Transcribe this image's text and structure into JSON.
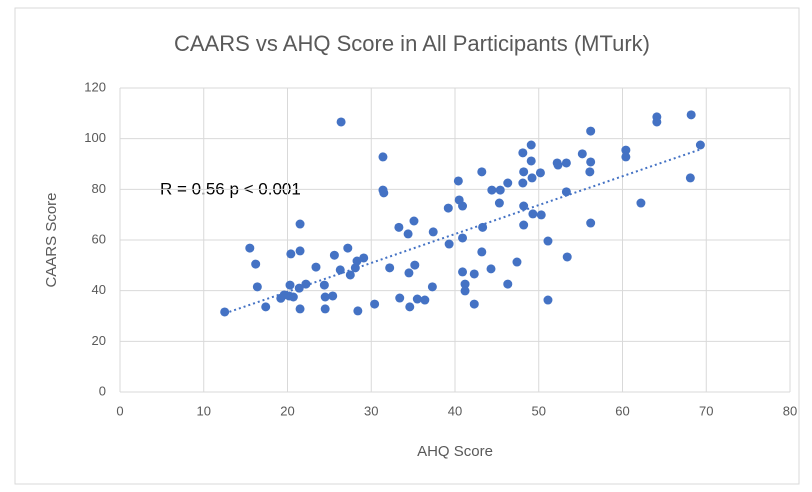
{
  "chart_data": {
    "type": "scatter",
    "title": "CAARS vs AHQ Score in All Participants (MTurk)",
    "x_label": "AHQ Score",
    "y_label": "CAARS Score",
    "annotation": "R = 0.56 p < 0.001",
    "color": "#4472c4",
    "grid": true,
    "xlim": [
      0,
      80
    ],
    "xticks": [
      0,
      10,
      20,
      30,
      40,
      50,
      60,
      70,
      80
    ],
    "ylim": [
      0,
      120
    ],
    "yticks": [
      0,
      20,
      40,
      60,
      80,
      100,
      120
    ],
    "trendline": {
      "x": [
        12.5,
        69.5
      ],
      "y": [
        31,
        96
      ]
    },
    "x": [
      12.5,
      15.5,
      16.2,
      16.4,
      17.4,
      19.2,
      19.6,
      20.2,
      20.3,
      20.4,
      20.7,
      21.4,
      21.5,
      21.5,
      21.5,
      22.2,
      23.4,
      24.4,
      24.5,
      24.5,
      25.6,
      25.4,
      26.3,
      26.4,
      27.2,
      27.5,
      28.1,
      28.3,
      28.4,
      29.1,
      30.4,
      31.4,
      31.4,
      31.5,
      32.2,
      33.3,
      33.4,
      34.4,
      34.5,
      34.6,
      35.1,
      35.2,
      35.5,
      36.4,
      37.4,
      37.3,
      39.2,
      39.3,
      40.4,
      40.5,
      40.9,
      40.9,
      40.9,
      41.2,
      41.2,
      42.3,
      42.3,
      43.2,
      43.3,
      43.2,
      44.3,
      44.4,
      45.4,
      45.3,
      46.3,
      46.3,
      47.4,
      48.1,
      48.2,
      48.1,
      48.2,
      48.2,
      49.1,
      49.1,
      49.2,
      49.3,
      50.2,
      50.3,
      51.1,
      51.1,
      52.2,
      52.3,
      53.3,
      53.3,
      53.4,
      55.2,
      56.2,
      56.2,
      56.1,
      56.2,
      60.4,
      60.4,
      62.2,
      64.1,
      64.1,
      68.2,
      68.1,
      69.3
    ],
    "y": [
      31.6,
      56.8,
      50.5,
      41.5,
      33.6,
      37,
      38.3,
      37.9,
      42.2,
      54.5,
      37.5,
      41,
      55.7,
      66.3,
      32.8,
      42.6,
      49.3,
      42.2,
      37.5,
      32.8,
      54,
      37.9,
      48.2,
      106.6,
      56.8,
      46.2,
      49,
      51.7,
      32,
      52.9,
      34.7,
      92.8,
      79.7,
      78.6,
      49,
      65,
      37.1,
      62.4,
      47,
      33.6,
      67.5,
      50.1,
      36.7,
      36.3,
      63.2,
      41.5,
      72.6,
      58.4,
      83.3,
      75.8,
      73.4,
      60.8,
      47.4,
      42.6,
      39.9,
      46.6,
      34.7,
      86.9,
      65,
      55.3,
      48.6,
      79.7,
      79.7,
      74.6,
      82.5,
      42.6,
      51.3,
      94.4,
      86.9,
      82.5,
      73.4,
      65.9,
      97.5,
      91.2,
      84.5,
      70.3,
      86.5,
      69.9,
      59.6,
      36.3,
      90.4,
      89.6,
      90.4,
      79,
      53.3,
      94,
      103,
      90.8,
      86.9,
      66.7,
      95.5,
      92.8,
      74.6,
      108.6,
      106.6,
      109.4,
      84.5,
      97.5
    ]
  }
}
